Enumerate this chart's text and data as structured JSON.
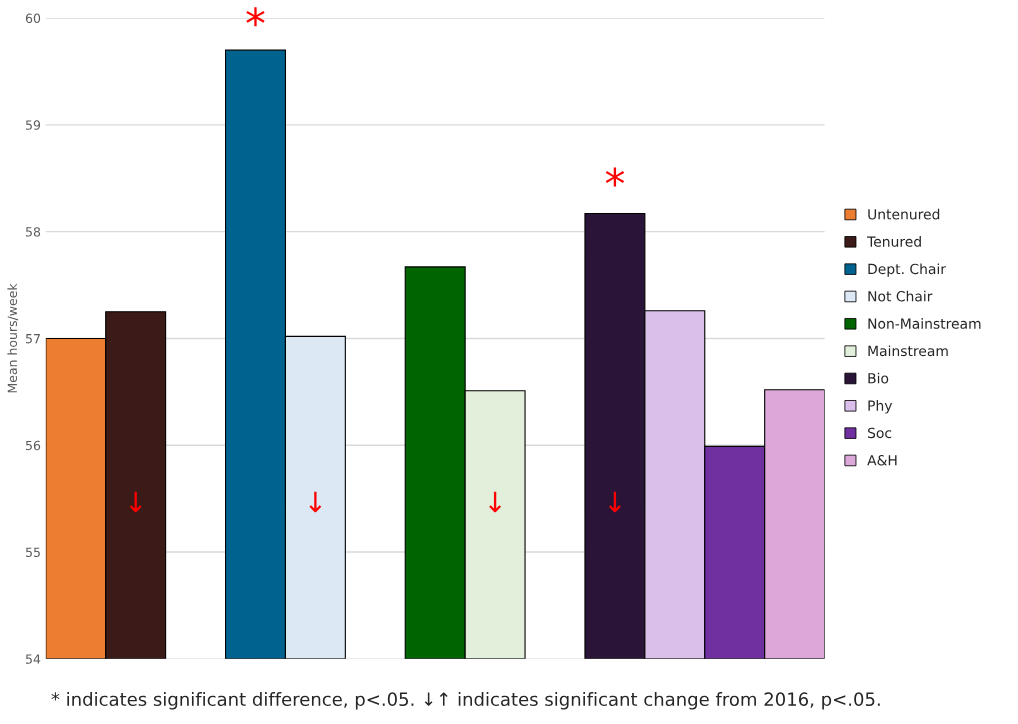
{
  "chart_data": {
    "type": "bar",
    "ylabel": "Mean hours/week",
    "categories": [
      null,
      null,
      null,
      null,
      null,
      null,
      null,
      null,
      null,
      null,
      null,
      null,
      null
    ],
    "series": [
      {
        "name": "Untenured",
        "color": "#ed7d31",
        "values": [
          57.0,
          null,
          null,
          null,
          null,
          null,
          null,
          null,
          null,
          null,
          null,
          null,
          null
        ]
      },
      {
        "name": "Tenured",
        "color": "#3b1a17",
        "values": [
          null,
          57.25,
          null,
          null,
          null,
          null,
          null,
          null,
          null,
          null,
          null,
          null,
          null
        ]
      },
      {
        "name": "Dept. Chair",
        "color": "#00628f",
        "values": [
          null,
          null,
          null,
          59.7,
          null,
          null,
          null,
          null,
          null,
          null,
          null,
          null,
          null
        ]
      },
      {
        "name": "Not Chair",
        "color": "#dde8f5",
        "values": [
          null,
          null,
          null,
          null,
          57.02,
          null,
          null,
          null,
          null,
          null,
          null,
          null,
          null
        ]
      },
      {
        "name": "Non-Mainstream",
        "color": "#006400",
        "values": [
          null,
          null,
          null,
          null,
          null,
          null,
          57.67,
          null,
          null,
          null,
          null,
          null,
          null
        ]
      },
      {
        "name": "Mainstream",
        "color": "#e2efda",
        "values": [
          null,
          null,
          null,
          null,
          null,
          null,
          null,
          56.51,
          null,
          null,
          null,
          null,
          null
        ]
      },
      {
        "name": "Bio",
        "color": "#2a1538",
        "values": [
          null,
          null,
          null,
          null,
          null,
          null,
          null,
          null,
          null,
          58.17,
          null,
          null,
          null
        ]
      },
      {
        "name": "Phy",
        "color": "#d9bfea",
        "values": [
          null,
          null,
          null,
          null,
          null,
          null,
          null,
          null,
          null,
          null,
          57.26,
          null,
          null
        ]
      },
      {
        "name": "Soc",
        "color": "#7030a0",
        "values": [
          null,
          null,
          null,
          null,
          null,
          null,
          null,
          null,
          null,
          null,
          null,
          55.99,
          null
        ]
      },
      {
        "name": "A&H",
        "color": "#dba8d9",
        "values": [
          null,
          null,
          null,
          null,
          null,
          null,
          null,
          null,
          null,
          null,
          null,
          null,
          56.52
        ]
      }
    ],
    "ylim": [
      54,
      60
    ],
    "yticks": [
      54,
      55,
      56,
      57,
      58,
      59,
      60
    ],
    "grid": "y",
    "legend": "right",
    "annotations": [
      "*",
      "*",
      "↓",
      "↓",
      "↓",
      "↓",
      "* indicates significant difference, p<.05. ↓↑ indicates significant change from 2016, p<.05."
    ]
  }
}
